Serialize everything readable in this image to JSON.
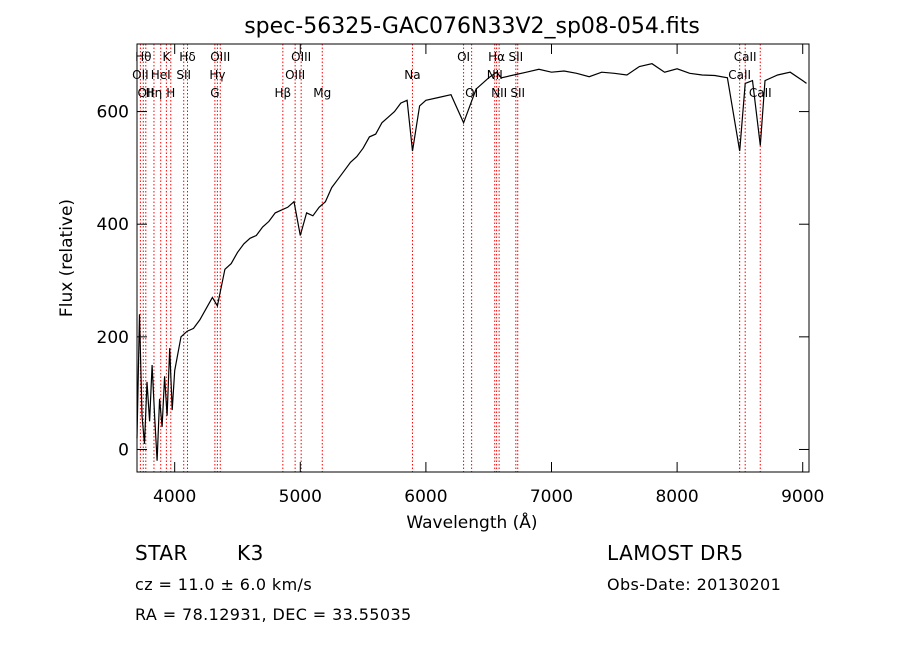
{
  "chart_data": {
    "type": "line",
    "title": "spec-56325-GAC076N33V2_sp08-054.fits",
    "xlabel": "Wavelength (Å)",
    "ylabel": "Flux (relative)",
    "xlim": [
      3700,
      9050
    ],
    "ylim": [
      -40,
      720
    ],
    "xticks": [
      4000,
      5000,
      6000,
      7000,
      8000,
      9000
    ],
    "yticks": [
      0,
      200,
      400,
      600
    ],
    "grid": false,
    "legend": "none",
    "series": [
      {
        "x": [
          3700,
          3720,
          3740,
          3760,
          3780,
          3800,
          3820,
          3840,
          3860,
          3880,
          3900,
          3920,
          3940,
          3960,
          3980,
          4000,
          4050,
          4100,
          4150,
          4200,
          4250,
          4300,
          4340,
          4400,
          4450,
          4500,
          4550,
          4600,
          4650,
          4700,
          4750,
          4800,
          4850,
          4900,
          4950,
          5000,
          5050,
          5100,
          5150,
          5200,
          5250,
          5300,
          5350,
          5400,
          5450,
          5500,
          5550,
          5600,
          5650,
          5700,
          5750,
          5800,
          5850,
          5893,
          5950,
          6000,
          6100,
          6200,
          6300,
          6400,
          6500,
          6563,
          6600,
          6700,
          6800,
          6900,
          7000,
          7100,
          7200,
          7300,
          7400,
          7500,
          7600,
          7700,
          7800,
          7900,
          8000,
          8100,
          8200,
          8300,
          8400,
          8498,
          8542,
          8600,
          8662,
          8700,
          8800,
          8900,
          9000,
          9030
        ],
        "values": [
          20,
          240,
          60,
          10,
          120,
          50,
          150,
          60,
          -20,
          90,
          40,
          130,
          60,
          180,
          70,
          140,
          200,
          210,
          215,
          230,
          250,
          270,
          255,
          320,
          330,
          350,
          365,
          375,
          380,
          395,
          405,
          420,
          425,
          430,
          440,
          380,
          420,
          415,
          430,
          440,
          465,
          480,
          495,
          510,
          520,
          535,
          555,
          560,
          580,
          590,
          600,
          615,
          620,
          530,
          610,
          620,
          625,
          630,
          580,
          640,
          660,
          670,
          660,
          665,
          670,
          675,
          670,
          672,
          668,
          662,
          670,
          668,
          665,
          680,
          685,
          670,
          676,
          668,
          665,
          664,
          660,
          530,
          650,
          655,
          540,
          655,
          665,
          670,
          655,
          650
        ]
      }
    ],
    "lines": [
      {
        "wl": 3727,
        "label": "OII",
        "row": 1
      },
      {
        "wl": 3750,
        "label": "Hθ",
        "row": 0
      },
      {
        "wl": 3770,
        "label": "OII",
        "row": 2
      },
      {
        "wl": 3835,
        "label": "Hη",
        "row": 2
      },
      {
        "wl": 3889,
        "label": "HeI",
        "row": 1
      },
      {
        "wl": 3934,
        "label": "K",
        "row": 0
      },
      {
        "wl": 3969,
        "label": "H",
        "row": 2
      },
      {
        "wl": 4072,
        "label": "SII",
        "row": 1
      },
      {
        "wl": 4102,
        "label": "Hδ",
        "row": 0
      },
      {
        "wl": 4320,
        "label": "G",
        "row": 2
      },
      {
        "wl": 4340,
        "label": "Hγ",
        "row": 1
      },
      {
        "wl": 4363,
        "label": "OIII",
        "row": 0
      },
      {
        "wl": 4861,
        "label": "Hβ",
        "row": 2
      },
      {
        "wl": 4959,
        "label": "OIII",
        "row": 1
      },
      {
        "wl": 5007,
        "label": "OIII",
        "row": 0
      },
      {
        "wl": 5175,
        "label": "Mg",
        "row": 2
      },
      {
        "wl": 5893,
        "label": "Na",
        "row": 1
      },
      {
        "wl": 6300,
        "label": "OI",
        "row": 0
      },
      {
        "wl": 6364,
        "label": "OI",
        "row": 2
      },
      {
        "wl": 6548,
        "label": "NII",
        "row": 1
      },
      {
        "wl": 6563,
        "label": "Hα",
        "row": 0
      },
      {
        "wl": 6583,
        "label": "NII",
        "row": 2
      },
      {
        "wl": 6716,
        "label": "SII",
        "row": 0
      },
      {
        "wl": 6731,
        "label": "SII",
        "row": 2
      },
      {
        "wl": 8498,
        "label": "CaII",
        "row": 1
      },
      {
        "wl": 8542,
        "label": "CaII",
        "row": 0
      },
      {
        "wl": 8662,
        "label": "CaII",
        "row": 2
      }
    ],
    "line_color": "#ff0000"
  },
  "info": {
    "object_type": "STAR",
    "subclass": "K3",
    "survey": "LAMOST DR5",
    "cz": "cz = 11.0 ± 6.0 km/s",
    "obs_date": "Obs-Date: 20130201",
    "radec": "RA =  78.12931, DEC =  33.55035"
  }
}
